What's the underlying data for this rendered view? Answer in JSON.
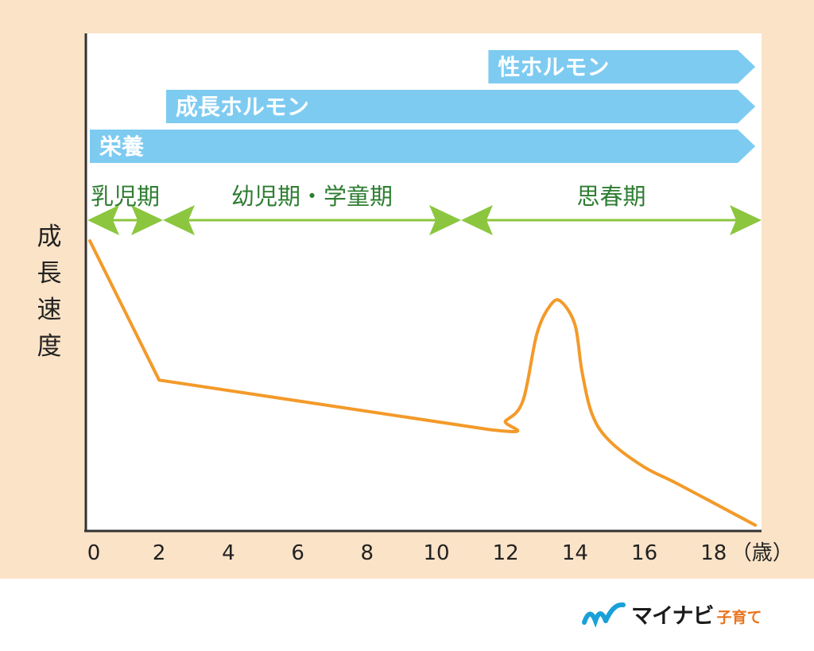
{
  "chart_data": {
    "type": "line",
    "ylabel": "成長速度",
    "x_ticks": [
      0,
      2,
      4,
      6,
      8,
      10,
      12,
      14,
      16,
      18
    ],
    "x_tick_labels": [
      "0",
      "2",
      "4",
      "6",
      "8",
      "10",
      "12",
      "14",
      "16",
      "18"
    ],
    "x_unit": "（歳）",
    "xlim": [
      0,
      20
    ],
    "ylim": [
      0,
      100
    ],
    "grid": false,
    "series": [
      {
        "color": "#f39a2a",
        "x": [
          0,
          2,
          11.5,
          12,
          12.5,
          12.9,
          13.3,
          13.6,
          14,
          14.2,
          14.5,
          15,
          16,
          17,
          19.2
        ],
        "y": [
          100,
          52,
          35,
          38,
          45,
          68,
          78,
          79,
          71,
          55,
          40,
          31,
          22,
          16,
          2
        ]
      }
    ],
    "factor_bars": [
      {
        "label": "性ホルモン",
        "start": 11.5,
        "end": 19.2,
        "color": "#7ecbf1"
      },
      {
        "label": "成長ホルモン",
        "start": 2.2,
        "end": 19.2,
        "color": "#7ecbf1"
      },
      {
        "label": "栄養",
        "start": 0,
        "end": 19.2,
        "color": "#7ecbf1"
      }
    ],
    "periods": [
      {
        "label": "乳児期",
        "start": 0,
        "end": 2
      },
      {
        "label": "幼児期・学童期",
        "start": 2,
        "end": 11.2
      },
      {
        "label": "思春期",
        "start": 11.2,
        "end": 19.2
      }
    ],
    "period_arrow_color": "#8cc63f",
    "period_text_color": "#2e7d32"
  },
  "logo": {
    "main": "マイナビ",
    "sub": "子育て",
    "brand_color": "#1aa0d8",
    "accent": "#e8741f"
  }
}
